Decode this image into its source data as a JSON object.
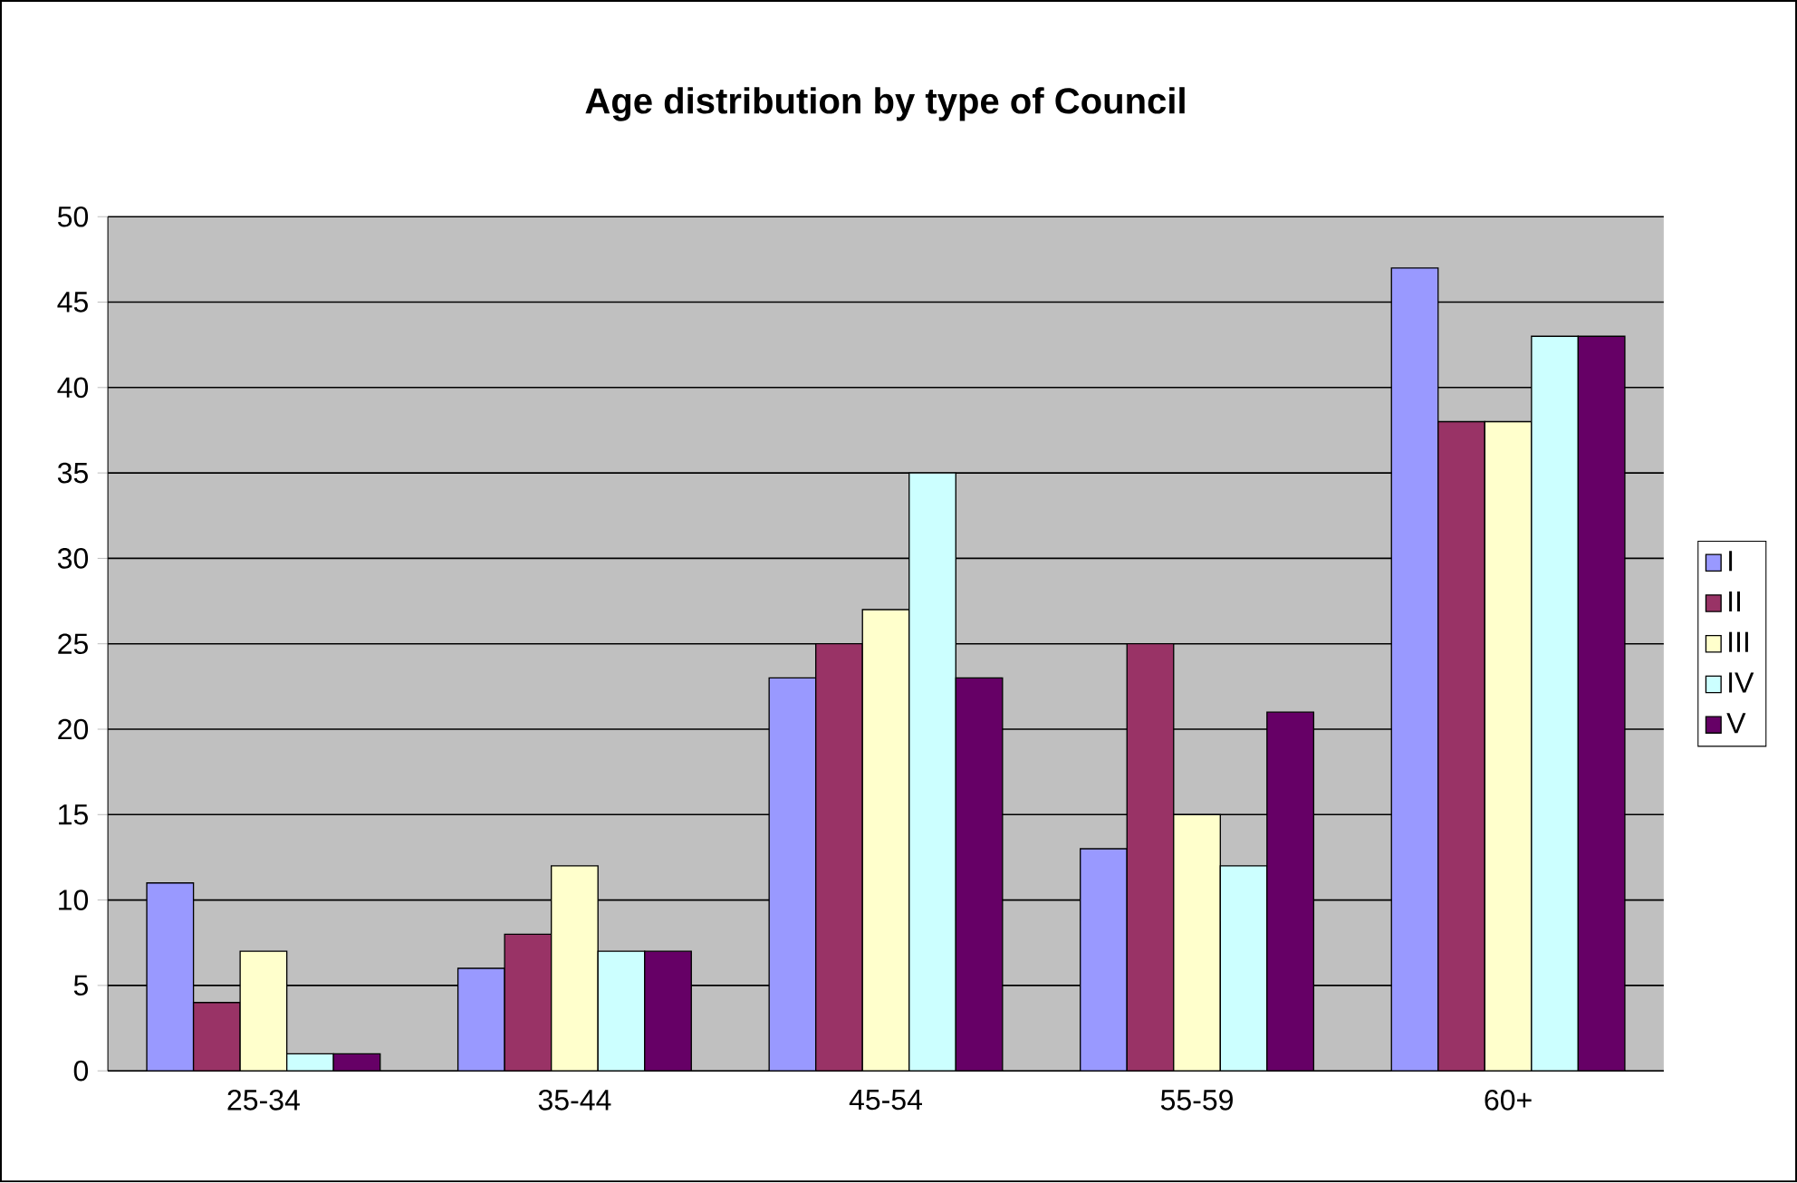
{
  "chart_data": {
    "type": "bar",
    "title": "Age distribution by type of Council",
    "categories": [
      "25-34",
      "35-44",
      "45-54",
      "55-59",
      "60+"
    ],
    "series": [
      {
        "name": "I",
        "color": "#9999ff",
        "values": [
          11,
          6,
          23,
          13,
          47
        ]
      },
      {
        "name": "II",
        "color": "#993366",
        "values": [
          4,
          8,
          25,
          25,
          38
        ]
      },
      {
        "name": "III",
        "color": "#ffffcc",
        "values": [
          7,
          12,
          27,
          15,
          38
        ]
      },
      {
        "name": "IV",
        "color": "#ccffff",
        "values": [
          1,
          7,
          35,
          12,
          43
        ]
      },
      {
        "name": "V",
        "color": "#660066",
        "values": [
          1,
          7,
          23,
          21,
          43
        ]
      }
    ],
    "ylim": [
      0,
      50
    ],
    "yticks": [
      0,
      5,
      10,
      15,
      20,
      25,
      30,
      35,
      40,
      45,
      50
    ],
    "grid": "y",
    "legend": "right"
  }
}
